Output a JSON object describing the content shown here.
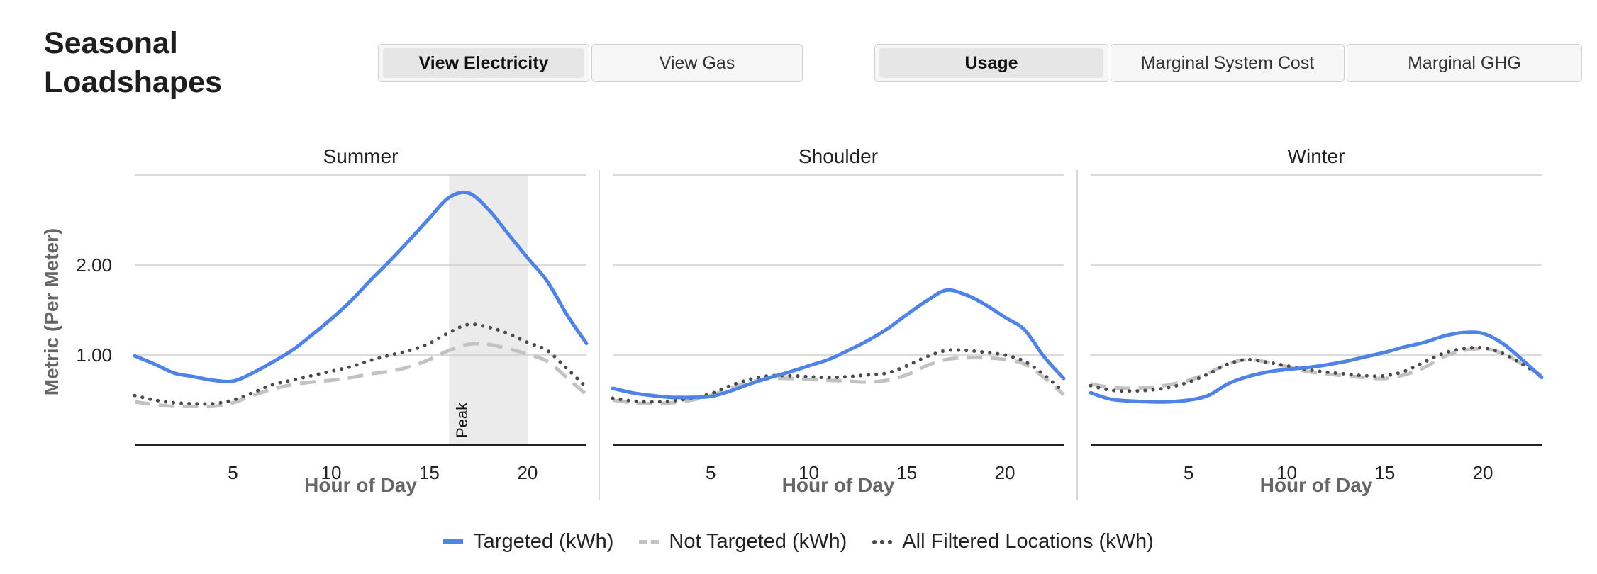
{
  "header": {
    "title": "Seasonal Loadshapes"
  },
  "toggles": {
    "fuel": [
      {
        "label": "View Electricity",
        "active": true
      },
      {
        "label": "View Gas",
        "active": false
      }
    ],
    "metric": [
      {
        "label": "Usage",
        "active": true
      },
      {
        "label": "Marginal System Cost",
        "active": false
      },
      {
        "label": "Marginal GHG",
        "active": false
      }
    ]
  },
  "chart_data": {
    "type": "line",
    "ylabel": "Metric (Per Meter)",
    "xlabel": "Hour of Day",
    "ylim": [
      0,
      3.0
    ],
    "yticks": [
      1.0,
      2.0
    ],
    "ytick_labels": [
      "1.00",
      "2.00"
    ],
    "xlim": [
      0,
      23
    ],
    "xticks": [
      5,
      10,
      15,
      20
    ],
    "grid": true,
    "legend_position": "bottom",
    "colors": {
      "Targeted (kWh)": "#4f83e6",
      "Not Targeted (kWh)": "#c2c2c2",
      "All Filtered Locations (kWh)": "#4a4a4a"
    },
    "panels": [
      {
        "title": "Summer",
        "highlight": {
          "label": "Peak",
          "from": 16,
          "to": 20
        },
        "x": [
          0,
          1,
          2,
          3,
          4,
          5,
          6,
          7,
          8,
          9,
          10,
          11,
          12,
          13,
          14,
          15,
          16,
          17,
          18,
          19,
          20,
          21,
          22,
          23
        ],
        "series": [
          {
            "name": "Targeted (kWh)",
            "values": [
              0.99,
              0.9,
              0.8,
              0.76,
              0.72,
              0.71,
              0.8,
              0.92,
              1.05,
              1.22,
              1.4,
              1.6,
              1.83,
              2.05,
              2.28,
              2.52,
              2.75,
              2.8,
              2.62,
              2.35,
              2.08,
              1.82,
              1.45,
              1.13
            ]
          },
          {
            "name": "Not Targeted (kWh)",
            "values": [
              0.48,
              0.45,
              0.43,
              0.43,
              0.43,
              0.47,
              0.55,
              0.62,
              0.67,
              0.7,
              0.72,
              0.75,
              0.79,
              0.82,
              0.87,
              0.95,
              1.05,
              1.12,
              1.12,
              1.07,
              1.01,
              0.93,
              0.75,
              0.56
            ]
          },
          {
            "name": "All Filtered Locations (kWh)",
            "values": [
              0.55,
              0.5,
              0.47,
              0.46,
              0.46,
              0.5,
              0.58,
              0.67,
              0.72,
              0.77,
              0.82,
              0.87,
              0.94,
              1.0,
              1.05,
              1.13,
              1.25,
              1.34,
              1.31,
              1.24,
              1.14,
              1.05,
              0.85,
              0.64
            ]
          }
        ]
      },
      {
        "title": "Shoulder",
        "x": [
          0,
          1,
          2,
          3,
          4,
          5,
          6,
          7,
          8,
          9,
          10,
          11,
          12,
          13,
          14,
          15,
          16,
          17,
          18,
          19,
          20,
          21,
          22,
          23
        ],
        "series": [
          {
            "name": "Targeted (kWh)",
            "values": [
              0.63,
              0.58,
              0.55,
              0.53,
              0.53,
              0.54,
              0.6,
              0.68,
              0.75,
              0.81,
              0.88,
              0.95,
              1.05,
              1.16,
              1.29,
              1.45,
              1.6,
              1.72,
              1.67,
              1.56,
              1.42,
              1.28,
              0.98,
              0.74
            ]
          },
          {
            "name": "Not Targeted (kWh)",
            "values": [
              0.5,
              0.47,
              0.46,
              0.47,
              0.5,
              0.55,
              0.63,
              0.7,
              0.74,
              0.74,
              0.73,
              0.72,
              0.71,
              0.7,
              0.72,
              0.78,
              0.88,
              0.95,
              0.97,
              0.97,
              0.95,
              0.9,
              0.75,
              0.56
            ]
          },
          {
            "name": "All Filtered Locations (kWh)",
            "values": [
              0.52,
              0.49,
              0.48,
              0.49,
              0.52,
              0.57,
              0.66,
              0.73,
              0.77,
              0.77,
              0.76,
              0.75,
              0.76,
              0.78,
              0.8,
              0.88,
              0.98,
              1.05,
              1.05,
              1.03,
              1.0,
              0.93,
              0.78,
              0.59
            ]
          }
        ]
      },
      {
        "title": "Winter",
        "x": [
          0,
          1,
          2,
          3,
          4,
          5,
          6,
          7,
          8,
          9,
          10,
          11,
          12,
          13,
          14,
          15,
          16,
          17,
          18,
          19,
          20,
          21,
          22,
          23
        ],
        "series": [
          {
            "name": "Targeted (kWh)",
            "values": [
              0.58,
              0.51,
              0.49,
              0.48,
              0.48,
              0.5,
              0.55,
              0.68,
              0.76,
              0.81,
              0.84,
              0.86,
              0.89,
              0.93,
              0.98,
              1.03,
              1.09,
              1.14,
              1.21,
              1.25,
              1.24,
              1.13,
              0.95,
              0.75
            ]
          },
          {
            "name": "Not Targeted (kWh)",
            "values": [
              0.68,
              0.64,
              0.63,
              0.64,
              0.67,
              0.72,
              0.8,
              0.9,
              0.95,
              0.92,
              0.87,
              0.82,
              0.79,
              0.77,
              0.75,
              0.74,
              0.78,
              0.86,
              0.98,
              1.05,
              1.07,
              1.02,
              0.9,
              0.77
            ]
          },
          {
            "name": "All Filtered Locations (kWh)",
            "values": [
              0.66,
              0.61,
              0.6,
              0.61,
              0.64,
              0.7,
              0.79,
              0.9,
              0.95,
              0.92,
              0.88,
              0.84,
              0.81,
              0.79,
              0.77,
              0.77,
              0.82,
              0.92,
              1.02,
              1.07,
              1.08,
              1.02,
              0.9,
              0.77
            ]
          }
        ]
      }
    ]
  }
}
